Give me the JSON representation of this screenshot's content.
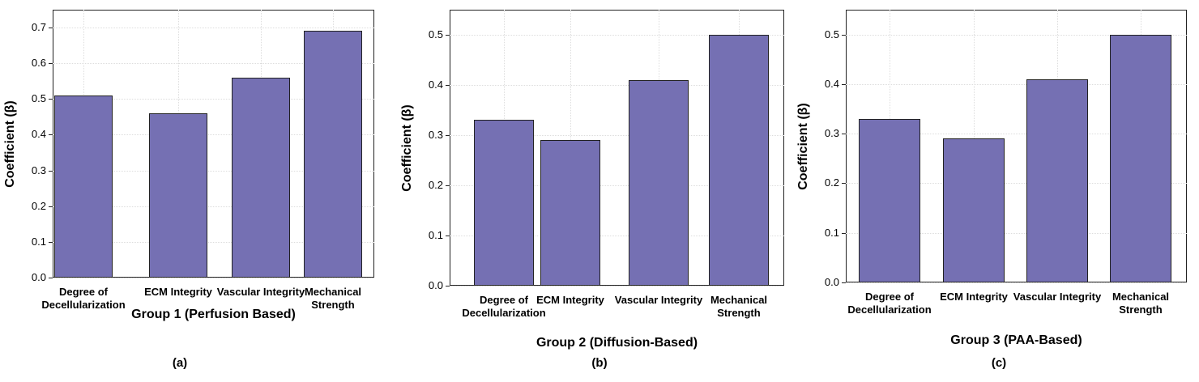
{
  "chart_data": [
    {
      "type": "bar",
      "panel_label": "(a)",
      "xlabel": "Group 1 (Perfusion Based)",
      "ylabel": "Coefficient (β)",
      "categories": [
        "Degree of Decellularization",
        "ECM Integrity",
        "Vascular Integrity",
        "Mechanical Strength"
      ],
      "values": [
        0.51,
        0.46,
        0.56,
        0.69
      ],
      "color": "#7570b3",
      "ylim": [
        0,
        0.75
      ],
      "yticks": [
        {
          "value": 0,
          "label": "0.0"
        },
        0.1,
        0.2,
        0.3,
        0.4,
        0.5,
        0.6,
        0.7
      ],
      "grid": true
    },
    {
      "type": "bar",
      "panel_label": "(b)",
      "xlabel": "Group 2 (Diffusion-Based)",
      "ylabel": "Coefficient (β)",
      "categories": [
        "Degree of Decellularization",
        "ECM Integrity",
        "Vascular Integrity",
        "Mechanical Strength"
      ],
      "values": [
        0.33,
        0.29,
        0.41,
        0.5
      ],
      "color": "#7570b3",
      "ylim": [
        0,
        0.55
      ],
      "yticks": [
        {
          "value": 0,
          "label": "0.0"
        },
        0.1,
        0.2,
        0.3,
        0.4,
        0.5
      ],
      "grid": true
    },
    {
      "type": "bar",
      "panel_label": "(c)",
      "xlabel": "Group 3 (PAA-Based)",
      "ylabel": "Coefficient (β)",
      "categories": [
        "Degree of Decellularization",
        "ECM Integrity",
        "Vascular Integrity",
        "Mechanical Strength"
      ],
      "values": [
        0.33,
        0.29,
        0.41,
        0.5
      ],
      "color": "#7570b3",
      "ylim": [
        0,
        0.55
      ],
      "yticks": [
        {
          "value": 0,
          "label": "0.0"
        },
        0.1,
        0.2,
        0.3,
        0.4,
        0.5
      ],
      "grid": true
    }
  ]
}
